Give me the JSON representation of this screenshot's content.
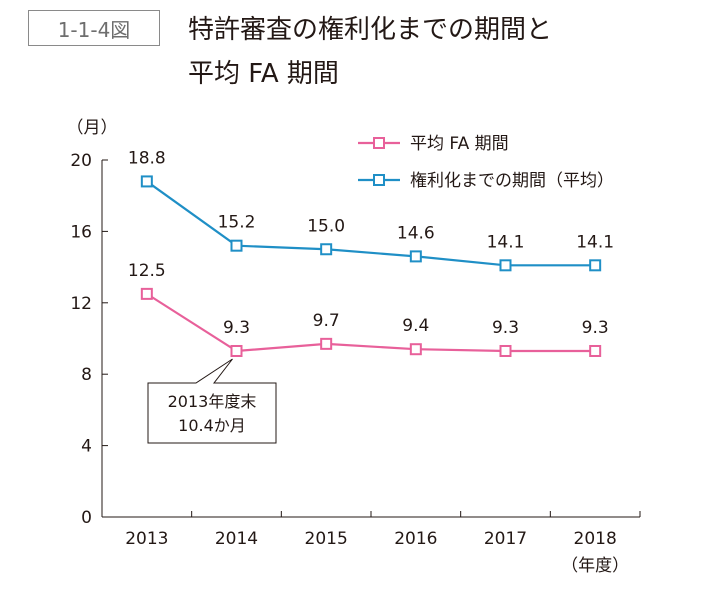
{
  "figure": {
    "number": "1-1-4図",
    "title_line1": "特許審査の権利化までの期間と",
    "title_line2": "平均 FA 期間"
  },
  "chart_data": {
    "type": "line",
    "categories": [
      "2013",
      "2014",
      "2015",
      "2016",
      "2017",
      "2018"
    ],
    "series": [
      {
        "name": "平均 FA 期間",
        "values": [
          12.5,
          9.3,
          9.7,
          9.4,
          9.3,
          9.3
        ],
        "color": "#e8609a"
      },
      {
        "name": "権利化までの期間（平均）",
        "values": [
          18.8,
          15.2,
          15.0,
          14.6,
          14.1,
          14.1
        ],
        "color": "#1f8fc6"
      }
    ],
    "value_labels": [
      [
        "12.5",
        "9.3",
        "9.7",
        "9.4",
        "9.3",
        "9.3"
      ],
      [
        "18.8",
        "15.2",
        "15.0",
        "14.6",
        "14.1",
        "14.1"
      ]
    ],
    "ylabel": "（月）",
    "xlabel": "（年度）",
    "ylim": [
      0,
      20
    ],
    "yticks": [
      0,
      4,
      8,
      12,
      16,
      20
    ],
    "ytick_labels": [
      "0",
      "4",
      "8",
      "12",
      "16",
      "20"
    ],
    "grid": false,
    "legend_position": "top-right",
    "annotation": {
      "line1": "2013年度末",
      "line2": "10.4か月"
    }
  }
}
